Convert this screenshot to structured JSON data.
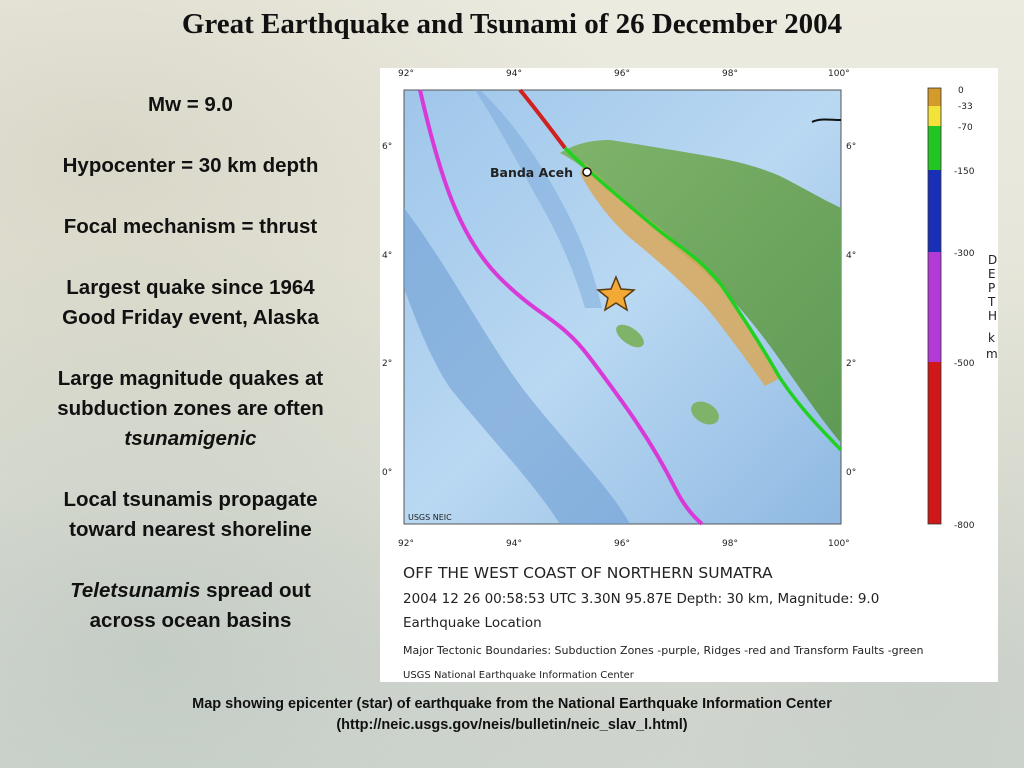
{
  "title": "Great Earthquake and Tsunami of 26 December 2004",
  "facts": {
    "magnitude": "Mw = 9.0",
    "hypocenter": "Hypocenter = 30 km depth",
    "focal": "Focal mechanism = thrust",
    "largest_line1": "Largest quake since 1964",
    "largest_line2": "Good Friday event, Alaska",
    "subduction_line1": "Large magnitude quakes at",
    "subduction_line2": "subduction zones are often",
    "subduction_line3": "tsunamigenic",
    "local_line1": "Local tsunamis propagate",
    "local_line2": "toward nearest shoreline",
    "tele_word": "Teletsunamis",
    "tele_rest": " spread out",
    "tele_line2": "across ocean basins"
  },
  "map": {
    "lon_labels": [
      "92°",
      "94°",
      "96°",
      "98°",
      "100°"
    ],
    "lat_labels": [
      "6°",
      "4°",
      "2°",
      "0°"
    ],
    "city": "Banda Aceh",
    "watermark": "USGS NEIC",
    "depth_scale": {
      "labels": [
        "0",
        "-33",
        "-70",
        "-150",
        "-300",
        "-500",
        "-800"
      ],
      "title_letters": [
        "D",
        "E",
        "P",
        "T",
        "H",
        "k",
        "m"
      ],
      "colors": [
        "#d49a2a",
        "#f2e23a",
        "#22c522",
        "#1a2fb8",
        "#b43ad8",
        "#d01818"
      ]
    },
    "info": {
      "line1": "OFF THE WEST COAST OF NORTHERN SUMATRA",
      "line2": "2004 12 26 00:58:53 UTC 3.30N 95.87E Depth: 30 km, Magnitude: 9.0",
      "line3": "Earthquake Location",
      "line4": "Major Tectonic Boundaries: Subduction Zones -purple, Ridges -red and Transform Faults -green",
      "line5": "USGS National Earthquake Information Center"
    }
  },
  "caption": {
    "line1": "Map showing epicenter (star) of earthquake from the National Earthquake Information Center",
    "line2": "(http://neic.usgs.gov/neis/bulletin/neic_slav_l.html)"
  }
}
